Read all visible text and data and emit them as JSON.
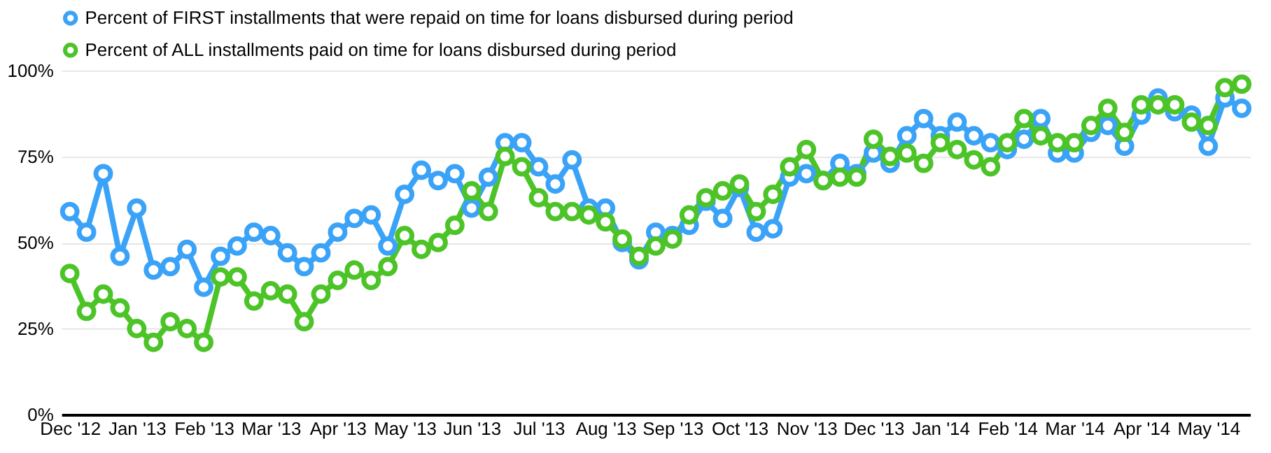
{
  "chart_data": {
    "type": "line",
    "categories": [
      "Dec '12",
      null,
      null,
      null,
      "Jan '13",
      null,
      null,
      null,
      "Feb '13",
      null,
      null,
      null,
      "Mar '13",
      null,
      null,
      null,
      "Apr '13",
      null,
      null,
      null,
      "May '13",
      null,
      null,
      null,
      "Jun '13",
      null,
      null,
      null,
      "Jul '13",
      null,
      null,
      null,
      "Aug '13",
      null,
      null,
      null,
      "Sep '13",
      null,
      null,
      null,
      "Oct '13",
      null,
      null,
      null,
      "Nov '13",
      null,
      null,
      null,
      "Dec '13",
      null,
      null,
      null,
      "Jan '14",
      null,
      null,
      null,
      "Feb '14",
      null,
      null,
      null,
      "Mar '14",
      null,
      null,
      null,
      "Apr '14",
      null,
      null,
      null,
      "May '14",
      null,
      null
    ],
    "series": [
      {
        "name": "Percent of FIRST installments that were repaid on time for loans disbursed during period",
        "color": "#3ba3f7",
        "values": [
          59,
          53,
          70,
          46,
          60,
          42,
          43,
          48,
          37,
          46,
          49,
          53,
          52,
          47,
          43,
          47,
          53,
          57,
          58,
          49,
          64,
          71,
          68,
          70,
          60,
          69,
          79,
          79,
          72,
          67,
          74,
          60,
          60,
          50,
          45,
          53,
          52,
          55,
          62,
          57,
          66,
          53,
          54,
          69,
          70,
          68,
          73,
          70,
          76,
          73,
          81,
          86,
          81,
          85,
          81,
          79,
          77,
          80,
          86,
          76,
          76,
          82,
          84,
          78,
          87,
          92,
          88,
          87,
          78,
          92,
          89
        ]
      },
      {
        "name": "Percent of ALL installments paid on time for loans disbursed during period",
        "color": "#4cc428",
        "values": [
          41,
          30,
          35,
          31,
          25,
          21,
          27,
          25,
          21,
          40,
          40,
          33,
          36,
          35,
          27,
          35,
          39,
          42,
          39,
          43,
          52,
          48,
          50,
          55,
          65,
          59,
          75,
          72,
          63,
          59,
          59,
          58,
          56,
          51,
          46,
          49,
          51,
          58,
          63,
          65,
          67,
          59,
          64,
          72,
          77,
          68,
          69,
          69,
          80,
          75,
          76,
          73,
          79,
          77,
          74,
          72,
          79,
          86,
          81,
          79,
          79,
          84,
          89,
          82,
          90,
          90,
          90,
          85,
          84,
          95,
          96
        ]
      }
    ],
    "ylim": [
      0,
      100
    ],
    "yticks": [
      {
        "value": 0,
        "label": "0%"
      },
      {
        "value": 25,
        "label": "25%"
      },
      {
        "value": 50,
        "label": "50%"
      },
      {
        "value": 75,
        "label": "75%"
      },
      {
        "value": 100,
        "label": "100%"
      }
    ],
    "grid": "y",
    "legend": "top",
    "marker": "circle",
    "line_style": "solid"
  }
}
